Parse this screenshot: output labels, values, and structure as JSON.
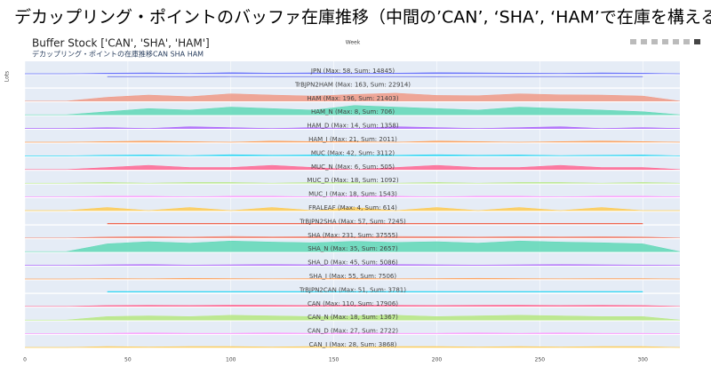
{
  "header": {
    "title": "デカップリング・ポイントのバッファ在庫推移（中間の’CAN’, ‘SHA’, ‘HAM’で在庫を構える）"
  },
  "chart_data": {
    "type": "area",
    "title": "Buffer Stock ['CAN', 'SHA', 'HAM']",
    "subtitle": "デカップリング・ポイントの在庫推移CAN SHA HAM",
    "xlabel": "Week",
    "ylabel": "Lots",
    "x": [
      0,
      20,
      40,
      60,
      80,
      100,
      120,
      140,
      160,
      180,
      200,
      220,
      240,
      260,
      280,
      300,
      318
    ],
    "xlim": [
      0,
      318
    ],
    "xticks": [
      0,
      50,
      100,
      150,
      200,
      250,
      300
    ],
    "panels": [
      {
        "name": "JPN (Max: 58, Sum: 14845)",
        "color": "#636efa",
        "fill": true,
        "ylim": [
          0,
          58
        ],
        "values": [
          0,
          0,
          3,
          4,
          2,
          5,
          3,
          4,
          2,
          3,
          5,
          4,
          3,
          2,
          4,
          3,
          0
        ]
      },
      {
        "name": "TrBJPN2HAM (Max: 163, Sum: 22914)",
        "color": "#8c94f0",
        "fill": false,
        "ylim": [
          0,
          163
        ],
        "values": [
          null,
          null,
          140,
          141,
          140,
          142,
          140,
          141,
          140,
          141,
          140,
          142,
          140,
          141,
          140,
          140,
          null
        ]
      },
      {
        "name": "HAM (Max: 196, Sum: 21403)",
        "color": "#f09a86",
        "fill": true,
        "ylim": [
          0,
          196
        ],
        "values": [
          0,
          0,
          60,
          95,
          70,
          115,
          95,
          80,
          105,
          125,
          90,
          85,
          115,
          100,
          95,
          80,
          0
        ]
      },
      {
        "name": "HAM_N (Max: 8, Sum: 706)",
        "color": "#5fd8b6",
        "fill": true,
        "ylim": [
          0,
          8
        ],
        "values": [
          0,
          0,
          2,
          4,
          3,
          5,
          4,
          3,
          6,
          5,
          4,
          3,
          5,
          4,
          3,
          2,
          0
        ]
      },
      {
        "name": "HAM_D (Max: 14, Sum: 1358)",
        "color": "#ab63fa",
        "fill": true,
        "ylim": [
          0,
          14
        ],
        "values": [
          0,
          0,
          1,
          0,
          2,
          1,
          0,
          1,
          0,
          2,
          1,
          0,
          1,
          2,
          0,
          1,
          0
        ]
      },
      {
        "name": "HAM_I (Max: 21, Sum: 2011)",
        "color": "#ffa15a",
        "fill": true,
        "ylim": [
          0,
          21
        ],
        "values": [
          0,
          0,
          1,
          2,
          1,
          0,
          2,
          1,
          1,
          0,
          2,
          1,
          0,
          1,
          2,
          1,
          0
        ]
      },
      {
        "name": "MUC (Max: 42, Sum: 3112)",
        "color": "#19d3f3",
        "fill": true,
        "ylim": [
          0,
          42
        ],
        "values": [
          0,
          0,
          2,
          3,
          1,
          4,
          2,
          3,
          1,
          2,
          4,
          2,
          3,
          1,
          2,
          3,
          0
        ]
      },
      {
        "name": "MUC_N (Max: 6, Sum: 505)",
        "color": "#ff6692",
        "fill": true,
        "ylim": [
          0,
          6
        ],
        "values": [
          0,
          0,
          1,
          2,
          1,
          1,
          2,
          1,
          0,
          1,
          2,
          1,
          1,
          2,
          1,
          1,
          0
        ]
      },
      {
        "name": "MUC_D (Max: 18, Sum: 1092)",
        "color": "#b6e880",
        "fill": true,
        "ylim": [
          0,
          18
        ],
        "values": [
          0,
          0,
          1,
          0,
          1,
          1,
          0,
          1,
          1,
          0,
          1,
          0,
          1,
          1,
          0,
          1,
          0
        ]
      },
      {
        "name": "MUC_I (Max: 18, Sum: 1543)",
        "color": "#ff97ff",
        "fill": true,
        "ylim": [
          0,
          18
        ],
        "values": [
          0,
          0,
          1,
          1,
          0,
          1,
          1,
          0,
          1,
          1,
          0,
          1,
          1,
          0,
          1,
          1,
          0
        ]
      },
      {
        "name": "FRALEAF (Max: 4, Sum: 614)",
        "color": "#fecb52",
        "fill": true,
        "ylim": [
          0,
          4
        ],
        "values": [
          0,
          0,
          1,
          0,
          1,
          0,
          1,
          0,
          1,
          0,
          1,
          0,
          1,
          0,
          1,
          0,
          0
        ]
      },
      {
        "name": "TrBJPN2SHA (Max: 57, Sum: 7245)",
        "color": "#ef553b",
        "fill": false,
        "ylim": [
          0,
          57
        ],
        "values": [
          null,
          null,
          3,
          3,
          3,
          3,
          3,
          3,
          3,
          3,
          3,
          3,
          3,
          3,
          3,
          3,
          null
        ]
      },
      {
        "name": "SHA (Max: 231, Sum: 37555)",
        "color": "#f28a78",
        "fill": true,
        "ylim": [
          0,
          231
        ],
        "values": [
          0,
          0,
          20,
          25,
          18,
          30,
          22,
          26,
          20,
          28,
          24,
          19,
          27,
          22,
          25,
          20,
          0
        ]
      },
      {
        "name": "SHA_N (Max: 35, Sum: 2657)",
        "color": "#5fd8b6",
        "fill": true,
        "ylim": [
          0,
          35
        ],
        "values": [
          0,
          0,
          22,
          28,
          24,
          30,
          27,
          25,
          29,
          26,
          28,
          24,
          30,
          27,
          25,
          22,
          0
        ]
      },
      {
        "name": "SHA_D (Max: 45, Sum: 5086)",
        "color": "#ab63fa",
        "fill": true,
        "ylim": [
          0,
          45
        ],
        "values": [
          0,
          0,
          2,
          3,
          1,
          2,
          3,
          2,
          1,
          3,
          2,
          1,
          2,
          3,
          2,
          1,
          0
        ]
      },
      {
        "name": "SHA_I (Max: 55, Sum: 7506)",
        "color": "#ffa15a",
        "fill": true,
        "ylim": [
          0,
          55
        ],
        "values": [
          0,
          0,
          2,
          1,
          3,
          2,
          1,
          2,
          3,
          1,
          2,
          3,
          2,
          1,
          2,
          2,
          0
        ]
      },
      {
        "name": "TrBJPN2CAN (Max: 51, Sum: 3781)",
        "color": "#19d3f3",
        "fill": false,
        "ylim": [
          0,
          51
        ],
        "values": [
          null,
          null,
          4,
          4,
          4,
          4,
          4,
          4,
          4,
          4,
          4,
          4,
          4,
          4,
          4,
          4,
          null
        ]
      },
      {
        "name": "CAN (Max: 110, Sum: 17906)",
        "color": "#ff6692",
        "fill": true,
        "ylim": [
          0,
          110
        ],
        "values": [
          0,
          0,
          8,
          10,
          9,
          11,
          10,
          9,
          11,
          10,
          9,
          10,
          11,
          9,
          10,
          8,
          0
        ]
      },
      {
        "name": "CAN_N (Max: 18, Sum: 1367)",
        "color": "#b6e880",
        "fill": true,
        "ylim": [
          0,
          18
        ],
        "values": [
          0,
          0,
          5,
          6,
          5,
          7,
          6,
          5,
          6,
          7,
          5,
          6,
          7,
          6,
          5,
          5,
          0
        ]
      },
      {
        "name": "CAN_D (Max: 27, Sum: 2722)",
        "color": "#ff97ff",
        "fill": true,
        "ylim": [
          0,
          27
        ],
        "values": [
          0,
          0,
          1,
          2,
          1,
          1,
          2,
          1,
          2,
          1,
          1,
          2,
          1,
          2,
          1,
          1,
          0
        ]
      },
      {
        "name": "CAN_I (Max: 28, Sum: 3868)",
        "color": "#fecb52",
        "fill": true,
        "ylim": [
          0,
          28
        ],
        "values": [
          0,
          0,
          2,
          1,
          2,
          2,
          1,
          2,
          1,
          2,
          2,
          1,
          2,
          1,
          2,
          2,
          0
        ]
      }
    ]
  }
}
